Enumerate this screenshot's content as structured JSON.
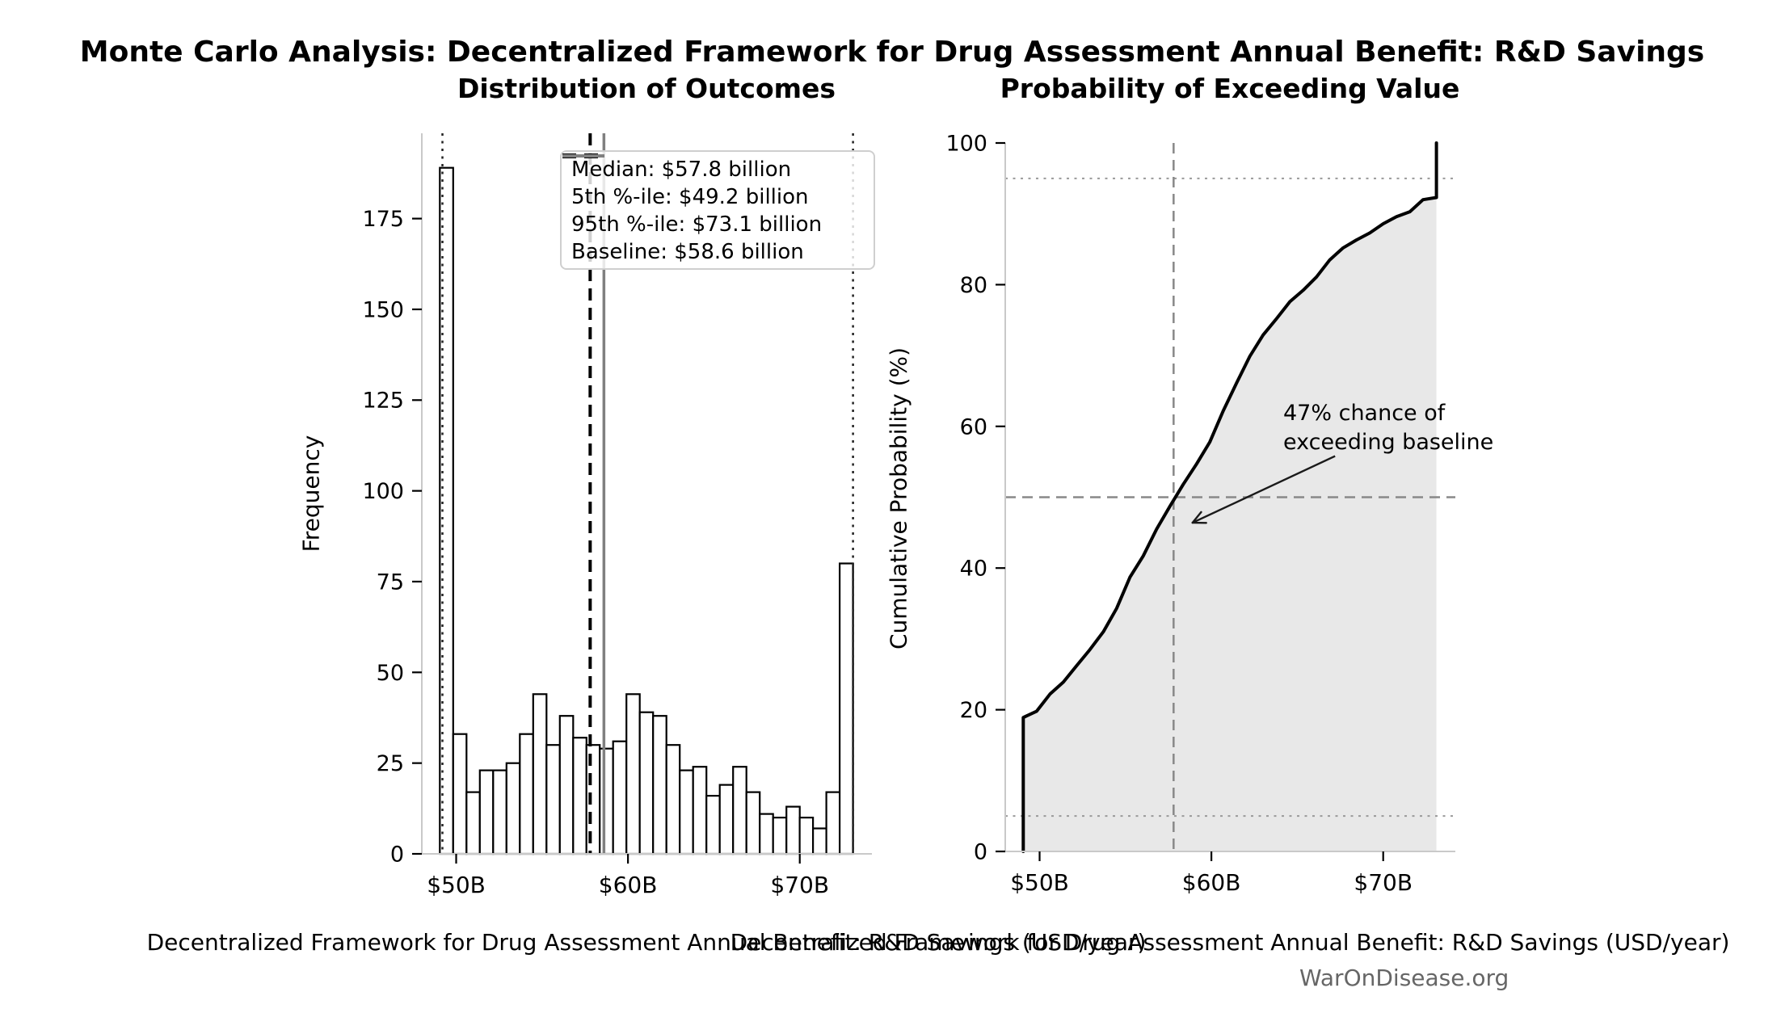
{
  "figure": {
    "suptitle": "Monte Carlo Analysis: Decentralized Framework for Drug Assessment Annual Benefit: R&D Savings",
    "watermark": "WarOnDisease.org"
  },
  "chart_data": [
    {
      "type": "bar",
      "subtype": "histogram",
      "title": "Distribution of Outcomes",
      "xlabel": "Decentralized Framework for Drug Assessment Annual Benefit: R&D Savings (USD/year)",
      "ylabel": "Frequency",
      "xlim": [
        48.0,
        74.2
      ],
      "ylim": [
        0,
        198.5
      ],
      "x_ticks": {
        "values": [
          50,
          60,
          70
        ],
        "labels": [
          "$50B",
          "$60B",
          "$70B"
        ]
      },
      "y_ticks": [
        0,
        25,
        50,
        75,
        100,
        125,
        150,
        175
      ],
      "bar_style": {
        "fill": "#ffffff",
        "stroke": "#000000"
      },
      "bin_start": 49.05,
      "bin_width": 0.77581,
      "counts": [
        189,
        33,
        17,
        23,
        23,
        25,
        33,
        44,
        30,
        38,
        32,
        30,
        29,
        31,
        44,
        39,
        38,
        30,
        23,
        24,
        16,
        19,
        24,
        17,
        11,
        10,
        13,
        10,
        7,
        17,
        80
      ],
      "grid": false,
      "legend_position": "upper right",
      "lines": [
        {
          "label": "Median: $57.8 billion",
          "value": 57.8,
          "style": "dashed",
          "color": "#000000"
        },
        {
          "label": "5th %-ile: $49.2 billion",
          "value": 49.2,
          "style": "dotted",
          "color": "#222222"
        },
        {
          "label": "95th %-ile: $73.1 billion",
          "value": 73.1,
          "style": "dotted",
          "color": "#222222"
        },
        {
          "label": "Baseline: $58.6 billion",
          "value": 58.6,
          "style": "solid",
          "color": "#808080"
        }
      ]
    },
    {
      "type": "line",
      "subtype": "cdf",
      "title": "Probability of Exceeding Value",
      "xlabel": "Decentralized Framework for Drug Assessment Annual Benefit: R&D Savings (USD/year)",
      "ylabel": "Cumulative Probability (%)",
      "xlim": [
        48.0,
        74.2
      ],
      "ylim": [
        0,
        100
      ],
      "x_ticks": {
        "values": [
          50,
          60,
          70
        ],
        "labels": [
          "$50B",
          "$60B",
          "$70B"
        ]
      },
      "y_ticks": [
        0,
        20,
        40,
        60,
        80,
        100
      ],
      "grid": false,
      "line_color": "#000000",
      "fill_under": true,
      "fill_color": "#e8e8e8",
      "cdf": {
        "x": [
          49.05,
          49.05,
          49.83,
          50.6,
          51.38,
          52.15,
          52.93,
          53.71,
          54.48,
          55.26,
          56.03,
          56.81,
          57.58,
          58.36,
          59.14,
          59.91,
          60.69,
          61.46,
          62.24,
          63.01,
          63.79,
          64.57,
          65.34,
          66.12,
          66.89,
          67.67,
          68.44,
          69.22,
          70.0,
          70.77,
          71.55,
          72.32,
          73.1,
          73.1
        ],
        "y": [
          0,
          18.9,
          19.8,
          22.2,
          23.9,
          26.2,
          28.5,
          31.0,
          34.3,
          38.7,
          41.7,
          45.5,
          48.7,
          51.8,
          54.7,
          57.8,
          62.2,
          66.1,
          69.9,
          72.9,
          75.2,
          77.6,
          79.2,
          81.1,
          83.5,
          85.2,
          86.3,
          87.3,
          88.6,
          89.6,
          90.3,
          92.0,
          92.3,
          100
        ]
      },
      "ref_lines": [
        {
          "axis": "y",
          "value": 95,
          "style": "dotted",
          "color": "#999999"
        },
        {
          "axis": "y",
          "value": 5,
          "style": "dotted",
          "color": "#999999"
        },
        {
          "axis": "y",
          "value": 50,
          "style": "dashed",
          "color": "#888888"
        },
        {
          "axis": "x",
          "value": 57.8,
          "style": "dashed",
          "color": "#888888"
        }
      ],
      "annotation": {
        "lines": [
          "47% chance of",
          "exceeding baseline"
        ],
        "arrow_from": [
          67.2,
          55.8
        ],
        "arrow_to": [
          58.9,
          46.4
        ]
      }
    }
  ]
}
